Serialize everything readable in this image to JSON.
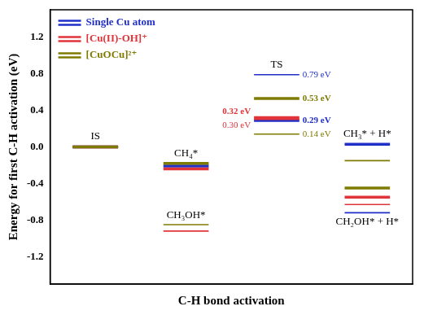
{
  "chart_data": {
    "type": "line",
    "categories": [
      "IS",
      "CH₄*",
      "TS",
      "CH₃* + H*"
    ],
    "annotations": [
      "CH₃OH*",
      "CH₂OH* + H*"
    ],
    "x_label": "C-H bond activation",
    "y_label": "Energy for first C-H activation (eV)",
    "ylim": [
      -1.5,
      1.5
    ],
    "yticks": [
      -1.2,
      -0.8,
      -0.4,
      {
        "value": 0,
        "label": "0.0"
      },
      0.4,
      0.8,
      1.2
    ],
    "grid": false,
    "legend": "upper left",
    "tick_labels": "y",
    "data_labels": true,
    "series": [
      {
        "name": "Single Cu atom",
        "color": "#1f2fc8",
        "line_style": "thick",
        "values": [
          0,
          -0.21,
          0.29,
          0.03
        ],
        "value_labels": [
          null,
          null,
          "0.29 eV",
          null
        ]
      },
      {
        "name": "Single Cu atom",
        "color": "#1f2fc8",
        "line_style": "thin",
        "values": [
          0,
          null,
          0.79,
          -0.72
        ],
        "value_labels": [
          null,
          null,
          "0.79 eV",
          null
        ]
      },
      {
        "name": "[Cu(II)-OH]⁺",
        "color": "#e0343a",
        "line_style": "thick",
        "values": [
          0,
          -0.24,
          0.32,
          -0.55
        ],
        "value_labels": [
          null,
          null,
          "0.32 eV",
          null
        ]
      },
      {
        "name": "[Cu(II)-OH]⁺",
        "color": "#e0343a",
        "line_style": "thin",
        "values": [
          0,
          -0.92,
          0.3,
          -0.63
        ],
        "value_labels": [
          null,
          null,
          "0.30 eV",
          null
        ]
      },
      {
        "name": "[CuOCu]²⁺",
        "color": "#7f7a00",
        "line_style": "thick",
        "values": [
          0,
          -0.18,
          0.53,
          -0.45
        ],
        "value_labels": [
          null,
          null,
          "0.53 eV",
          null
        ]
      },
      {
        "name": "[CuOCu]²⁺",
        "color": "#7f7a00",
        "line_style": "thin",
        "values": [
          0,
          -0.85,
          0.14,
          -0.15
        ],
        "value_labels": [
          null,
          null,
          "0.14 eV",
          null
        ]
      }
    ]
  }
}
